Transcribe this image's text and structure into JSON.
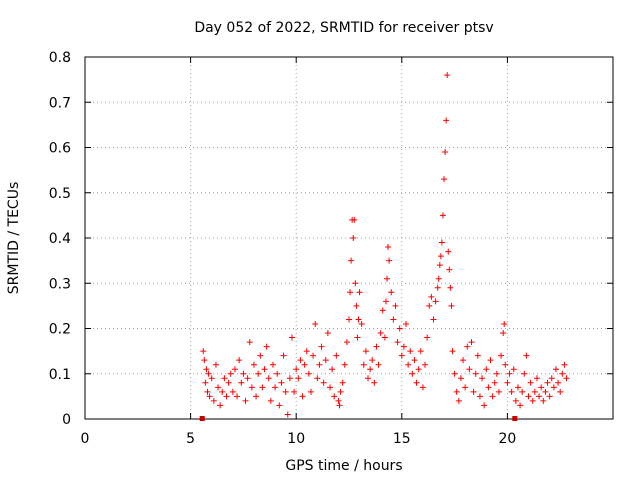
{
  "chart_data": {
    "type": "scatter",
    "title": "Day 052 of 2022, SRMTID for receiver ptsv",
    "xlabel": "GPS time / hours",
    "ylabel": "SRMTID / TECUs",
    "xlim": [
      0,
      25
    ],
    "ylim": [
      0,
      0.8
    ],
    "x_ticks": [
      0,
      5,
      10,
      15,
      20
    ],
    "x_tick_labels": [
      "0",
      "5",
      "10",
      "15",
      "20"
    ],
    "y_ticks": [
      0,
      0.1,
      0.2,
      0.3,
      0.4,
      0.5,
      0.6,
      0.7,
      0.8
    ],
    "y_tick_labels": [
      "0",
      "0.1",
      "0.2",
      "0.3",
      "0.4",
      "0.5",
      "0.6",
      "0.7",
      "0.8"
    ],
    "grid": true,
    "marker": "+",
    "colors": {
      "points": "#ff0000",
      "markers": "#cc0000",
      "grid": "#a0a0a0",
      "axes": "#000000"
    },
    "x_axis_markers": [
      5.55,
      20.35
    ],
    "series": [
      {
        "name": "SRMTID",
        "points": [
          [
            5.6,
            0.15
          ],
          [
            5.65,
            0.13
          ],
          [
            5.7,
            0.08
          ],
          [
            5.75,
            0.11
          ],
          [
            5.8,
            0.06
          ],
          [
            5.85,
            0.1
          ],
          [
            5.9,
            0.05
          ],
          [
            6.0,
            0.09
          ],
          [
            6.1,
            0.04
          ],
          [
            6.2,
            0.12
          ],
          [
            6.3,
            0.07
          ],
          [
            6.4,
            0.03
          ],
          [
            6.5,
            0.06
          ],
          [
            6.6,
            0.09
          ],
          [
            6.7,
            0.05
          ],
          [
            6.8,
            0.08
          ],
          [
            6.9,
            0.1
          ],
          [
            7.0,
            0.06
          ],
          [
            7.1,
            0.11
          ],
          [
            7.2,
            0.05
          ],
          [
            7.3,
            0.13
          ],
          [
            7.4,
            0.08
          ],
          [
            7.5,
            0.1
          ],
          [
            7.6,
            0.04
          ],
          [
            7.7,
            0.09
          ],
          [
            7.8,
            0.17
          ],
          [
            7.9,
            0.07
          ],
          [
            8.0,
            0.12
          ],
          [
            8.1,
            0.05
          ],
          [
            8.2,
            0.1
          ],
          [
            8.3,
            0.14
          ],
          [
            8.4,
            0.07
          ],
          [
            8.5,
            0.11
          ],
          [
            8.6,
            0.16
          ],
          [
            8.7,
            0.09
          ],
          [
            8.8,
            0.04
          ],
          [
            8.9,
            0.12
          ],
          [
            9.0,
            0.07
          ],
          [
            9.1,
            0.1
          ],
          [
            9.2,
            0.03
          ],
          [
            9.3,
            0.08
          ],
          [
            9.4,
            0.14
          ],
          [
            9.5,
            0.06
          ],
          [
            9.6,
            0.01
          ],
          [
            9.7,
            0.09
          ],
          [
            9.8,
            0.18
          ],
          [
            9.9,
            0.06
          ],
          [
            10.0,
            0.11
          ],
          [
            10.1,
            0.09
          ],
          [
            10.2,
            0.13
          ],
          [
            10.3,
            0.05
          ],
          [
            10.4,
            0.12
          ],
          [
            10.5,
            0.15
          ],
          [
            10.6,
            0.1
          ],
          [
            10.7,
            0.06
          ],
          [
            10.8,
            0.14
          ],
          [
            10.9,
            0.21
          ],
          [
            11.0,
            0.09
          ],
          [
            11.1,
            0.12
          ],
          [
            11.2,
            0.16
          ],
          [
            11.3,
            0.08
          ],
          [
            11.4,
            0.13
          ],
          [
            11.5,
            0.19
          ],
          [
            11.6,
            0.07
          ],
          [
            11.7,
            0.11
          ],
          [
            11.8,
            0.05
          ],
          [
            11.9,
            0.14
          ],
          [
            12.0,
            0.04
          ],
          [
            12.05,
            0.03
          ],
          [
            12.1,
            0.06
          ],
          [
            12.2,
            0.08
          ],
          [
            12.3,
            0.12
          ],
          [
            12.4,
            0.17
          ],
          [
            12.5,
            0.22
          ],
          [
            12.55,
            0.28
          ],
          [
            12.6,
            0.35
          ],
          [
            12.65,
            0.44
          ],
          [
            12.7,
            0.4
          ],
          [
            12.75,
            0.44
          ],
          [
            12.8,
            0.3
          ],
          [
            12.85,
            0.25
          ],
          [
            12.9,
            0.18
          ],
          [
            12.95,
            0.22
          ],
          [
            13.0,
            0.28
          ],
          [
            13.1,
            0.21
          ],
          [
            13.2,
            0.12
          ],
          [
            13.3,
            0.15
          ],
          [
            13.4,
            0.09
          ],
          [
            13.5,
            0.11
          ],
          [
            13.6,
            0.13
          ],
          [
            13.7,
            0.08
          ],
          [
            13.8,
            0.16
          ],
          [
            13.9,
            0.12
          ],
          [
            14.0,
            0.19
          ],
          [
            14.1,
            0.24
          ],
          [
            14.2,
            0.18
          ],
          [
            14.25,
            0.26
          ],
          [
            14.3,
            0.31
          ],
          [
            14.35,
            0.38
          ],
          [
            14.4,
            0.35
          ],
          [
            14.5,
            0.28
          ],
          [
            14.6,
            0.22
          ],
          [
            14.7,
            0.25
          ],
          [
            14.8,
            0.17
          ],
          [
            14.9,
            0.2
          ],
          [
            15.0,
            0.14
          ],
          [
            15.1,
            0.16
          ],
          [
            15.2,
            0.21
          ],
          [
            15.3,
            0.12
          ],
          [
            15.4,
            0.15
          ],
          [
            15.5,
            0.1
          ],
          [
            15.6,
            0.13
          ],
          [
            15.7,
            0.08
          ],
          [
            15.8,
            0.11
          ],
          [
            15.9,
            0.15
          ],
          [
            16.0,
            0.07
          ],
          [
            16.1,
            0.12
          ],
          [
            16.2,
            0.18
          ],
          [
            16.3,
            0.25
          ],
          [
            16.4,
            0.27
          ],
          [
            16.5,
            0.22
          ],
          [
            16.6,
            0.26
          ],
          [
            16.7,
            0.29
          ],
          [
            16.75,
            0.31
          ],
          [
            16.8,
            0.34
          ],
          [
            16.85,
            0.36
          ],
          [
            16.9,
            0.39
          ],
          [
            16.95,
            0.45
          ],
          [
            17.0,
            0.53
          ],
          [
            17.05,
            0.59
          ],
          [
            17.1,
            0.66
          ],
          [
            17.15,
            0.76
          ],
          [
            17.2,
            0.37
          ],
          [
            17.25,
            0.33
          ],
          [
            17.3,
            0.29
          ],
          [
            17.35,
            0.25
          ],
          [
            17.4,
            0.15
          ],
          [
            17.5,
            0.1
          ],
          [
            17.6,
            0.06
          ],
          [
            17.7,
            0.04
          ],
          [
            17.8,
            0.09
          ],
          [
            17.9,
            0.13
          ],
          [
            18.0,
            0.07
          ],
          [
            18.1,
            0.16
          ],
          [
            18.2,
            0.11
          ],
          [
            18.3,
            0.17
          ],
          [
            18.4,
            0.06
          ],
          [
            18.5,
            0.1
          ],
          [
            18.6,
            0.14
          ],
          [
            18.7,
            0.05
          ],
          [
            18.8,
            0.09
          ],
          [
            18.9,
            0.03
          ],
          [
            19.0,
            0.11
          ],
          [
            19.1,
            0.07
          ],
          [
            19.2,
            0.13
          ],
          [
            19.3,
            0.05
          ],
          [
            19.4,
            0.08
          ],
          [
            19.5,
            0.1
          ],
          [
            19.6,
            0.06
          ],
          [
            19.7,
            0.14
          ],
          [
            19.8,
            0.19
          ],
          [
            19.85,
            0.21
          ],
          [
            19.9,
            0.12
          ],
          [
            20.0,
            0.08
          ],
          [
            20.1,
            0.1
          ],
          [
            20.2,
            0.06
          ],
          [
            20.3,
            0.11
          ],
          [
            20.4,
            0.04
          ],
          [
            20.5,
            0.07
          ],
          [
            20.6,
            0.03
          ],
          [
            20.7,
            0.06
          ],
          [
            20.8,
            0.1
          ],
          [
            20.9,
            0.14
          ],
          [
            21.0,
            0.05
          ],
          [
            21.1,
            0.08
          ],
          [
            21.2,
            0.04
          ],
          [
            21.3,
            0.06
          ],
          [
            21.4,
            0.09
          ],
          [
            21.5,
            0.05
          ],
          [
            21.6,
            0.07
          ],
          [
            21.7,
            0.04
          ],
          [
            21.8,
            0.06
          ],
          [
            21.9,
            0.08
          ],
          [
            22.0,
            0.05
          ],
          [
            22.1,
            0.09
          ],
          [
            22.2,
            0.07
          ],
          [
            22.3,
            0.11
          ],
          [
            22.4,
            0.08
          ],
          [
            22.5,
            0.06
          ],
          [
            22.6,
            0.1
          ],
          [
            22.7,
            0.12
          ],
          [
            22.8,
            0.09
          ]
        ]
      }
    ]
  }
}
